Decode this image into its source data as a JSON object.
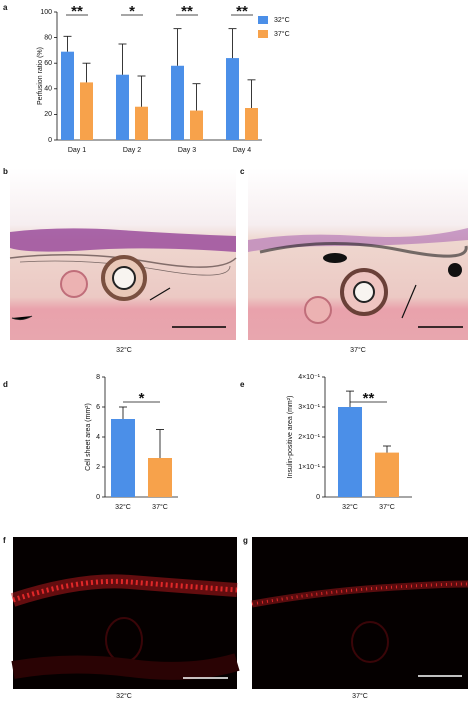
{
  "chart_data": [
    {
      "type": "bar",
      "panel": "a",
      "ylabel": "Perfusion ratio (%)",
      "categories": [
        "Day 1",
        "Day 2",
        "Day 3",
        "Day 4"
      ],
      "series": [
        {
          "name": "32°C",
          "color": "#4b8fe8",
          "values": [
            69,
            51,
            58,
            64
          ],
          "errors": [
            12,
            24,
            29,
            23
          ]
        },
        {
          "name": "37°C",
          "color": "#f7a24b",
          "values": [
            45,
            26,
            23,
            25
          ],
          "errors": [
            15,
            24,
            21,
            22
          ]
        }
      ],
      "significance": [
        "**",
        "*",
        "**",
        "**"
      ],
      "ylim": [
        0,
        100
      ],
      "yticks": [
        0,
        20,
        40,
        60,
        80,
        100
      ],
      "legend": "top-right"
    },
    {
      "type": "bar",
      "panel": "d",
      "ylabel": "Cell sheet area (mm²)",
      "categories": [
        "32°C",
        "37°C"
      ],
      "values": [
        5.2,
        2.6
      ],
      "errors": [
        0.8,
        1.9
      ],
      "colors": [
        "#4b8fe8",
        "#f7a24b"
      ],
      "significance": [
        "*"
      ],
      "ylim": [
        0,
        8
      ],
      "yticks": [
        0,
        2,
        4,
        6,
        8
      ]
    },
    {
      "type": "bar",
      "panel": "e",
      "ylabel": "Insulin-positive area (mm²)",
      "categories": [
        "32°C",
        "37°C"
      ],
      "values": [
        0.3,
        0.148
      ],
      "errors": [
        0.053,
        0.022
      ],
      "colors": [
        "#4b8fe8",
        "#f7a24b"
      ],
      "significance": [
        "**"
      ],
      "ylim": [
        0,
        0.4
      ],
      "yticks": [
        0,
        {
          "value": 0.1,
          "label": "1×10⁻¹"
        },
        {
          "value": 0.2,
          "label": "2×10⁻¹"
        },
        {
          "value": 0.3,
          "label": "3×10⁻¹"
        },
        {
          "value": 0.4,
          "label": "4×10⁻¹"
        }
      ]
    }
  ],
  "images": [
    {
      "panel": "b",
      "caption": "32°C"
    },
    {
      "panel": "c",
      "caption": "37°C"
    },
    {
      "panel": "f",
      "caption": "32°C"
    },
    {
      "panel": "g",
      "caption": "37°C"
    }
  ]
}
